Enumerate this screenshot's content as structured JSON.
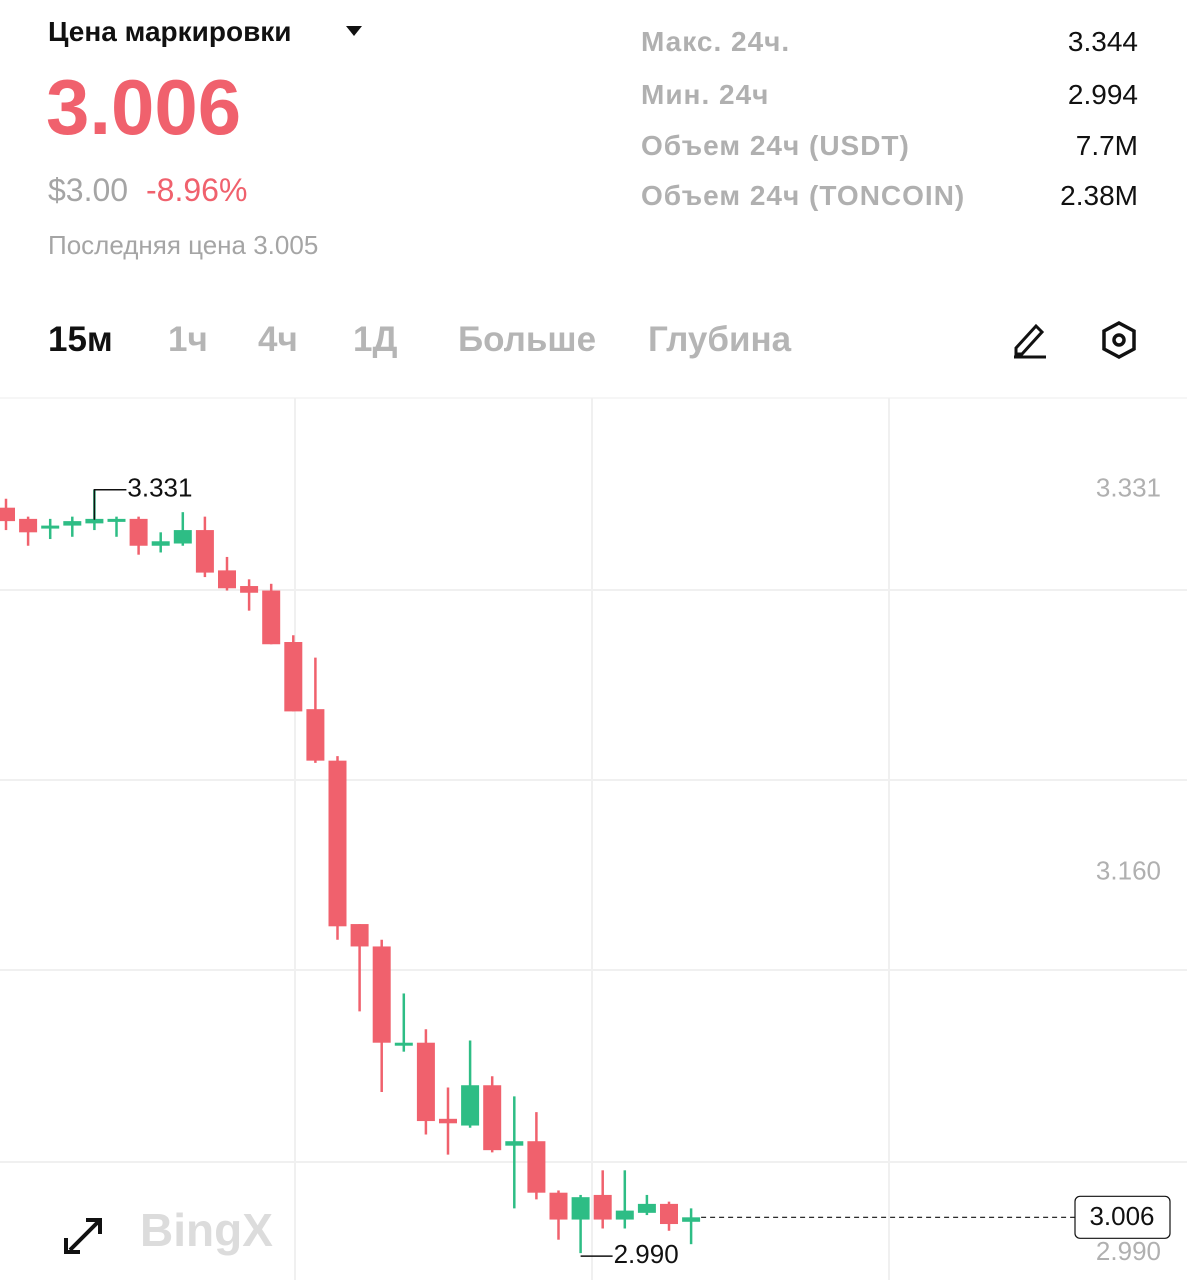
{
  "header": {
    "title": "Цена маркировки",
    "mark_price": "3.006",
    "usd_price": "$3.00",
    "change": "-8.96%",
    "last_price": "Последняя цена 3.005"
  },
  "stats": [
    {
      "label": "Макс. 24ч.",
      "value": "3.344"
    },
    {
      "label": "Мин. 24ч",
      "value": "2.994"
    },
    {
      "label": "Объем 24ч (USDT)",
      "value": "7.7M"
    },
    {
      "label": "Объем 24ч (TONCOIN)",
      "value": "2.38M"
    }
  ],
  "tabs": [
    "15м",
    "1ч",
    "4ч",
    "1Д",
    "Больше",
    "Глубина"
  ],
  "watermark": "BingX",
  "chart_data": {
    "type": "candlestick",
    "open": [
      3.323,
      3.318,
      3.314,
      3.315,
      3.316,
      3.317,
      3.318,
      3.306,
      3.307,
      3.313,
      3.295,
      3.288,
      3.286,
      3.263,
      3.233,
      3.21,
      3.137,
      3.127,
      3.083,
      3.084,
      3.05,
      3.047,
      3.065,
      3.038,
      3.04,
      3.017,
      3.005,
      3.016,
      3.005,
      3.008,
      3.012,
      3.004
    ],
    "high": [
      3.327,
      3.319,
      3.318,
      3.319,
      3.331,
      3.319,
      3.319,
      3.312,
      3.321,
      3.319,
      3.301,
      3.291,
      3.289,
      3.266,
      3.256,
      3.212,
      3.137,
      3.13,
      3.106,
      3.09,
      3.064,
      3.085,
      3.069,
      3.06,
      3.053,
      3.018,
      3.016,
      3.027,
      3.027,
      3.016,
      3.013,
      3.01
    ],
    "low": [
      3.313,
      3.306,
      3.309,
      3.31,
      3.313,
      3.31,
      3.302,
      3.303,
      3.306,
      3.292,
      3.286,
      3.277,
      3.262,
      3.232,
      3.209,
      3.13,
      3.098,
      3.062,
      3.08,
      3.043,
      3.034,
      3.046,
      3.035,
      3.01,
      3.014,
      2.996,
      2.99,
      3.001,
      3.001,
      3.007,
      3.0,
      2.994
    ],
    "close": [
      3.317,
      3.312,
      3.315,
      3.317,
      3.318,
      3.318,
      3.306,
      3.308,
      3.313,
      3.294,
      3.287,
      3.285,
      3.262,
      3.232,
      3.21,
      3.136,
      3.127,
      3.084,
      3.084,
      3.049,
      3.048,
      3.065,
      3.036,
      3.04,
      3.017,
      3.005,
      3.015,
      3.005,
      3.009,
      3.012,
      3.003,
      3.006
    ],
    "up_color": "#2ebd85",
    "down_color": "#f0616d",
    "ylim": [
      2.978,
      3.372
    ],
    "yticks": [
      3.331,
      {
        "value": 3.16,
        "label": "3.160"
      },
      {
        "value": 2.99,
        "label": "2.990"
      }
    ],
    "annotations": {
      "high": 3.331,
      "low": {
        "value": 2.99,
        "label": "2.990"
      },
      "last": 3.006
    }
  }
}
